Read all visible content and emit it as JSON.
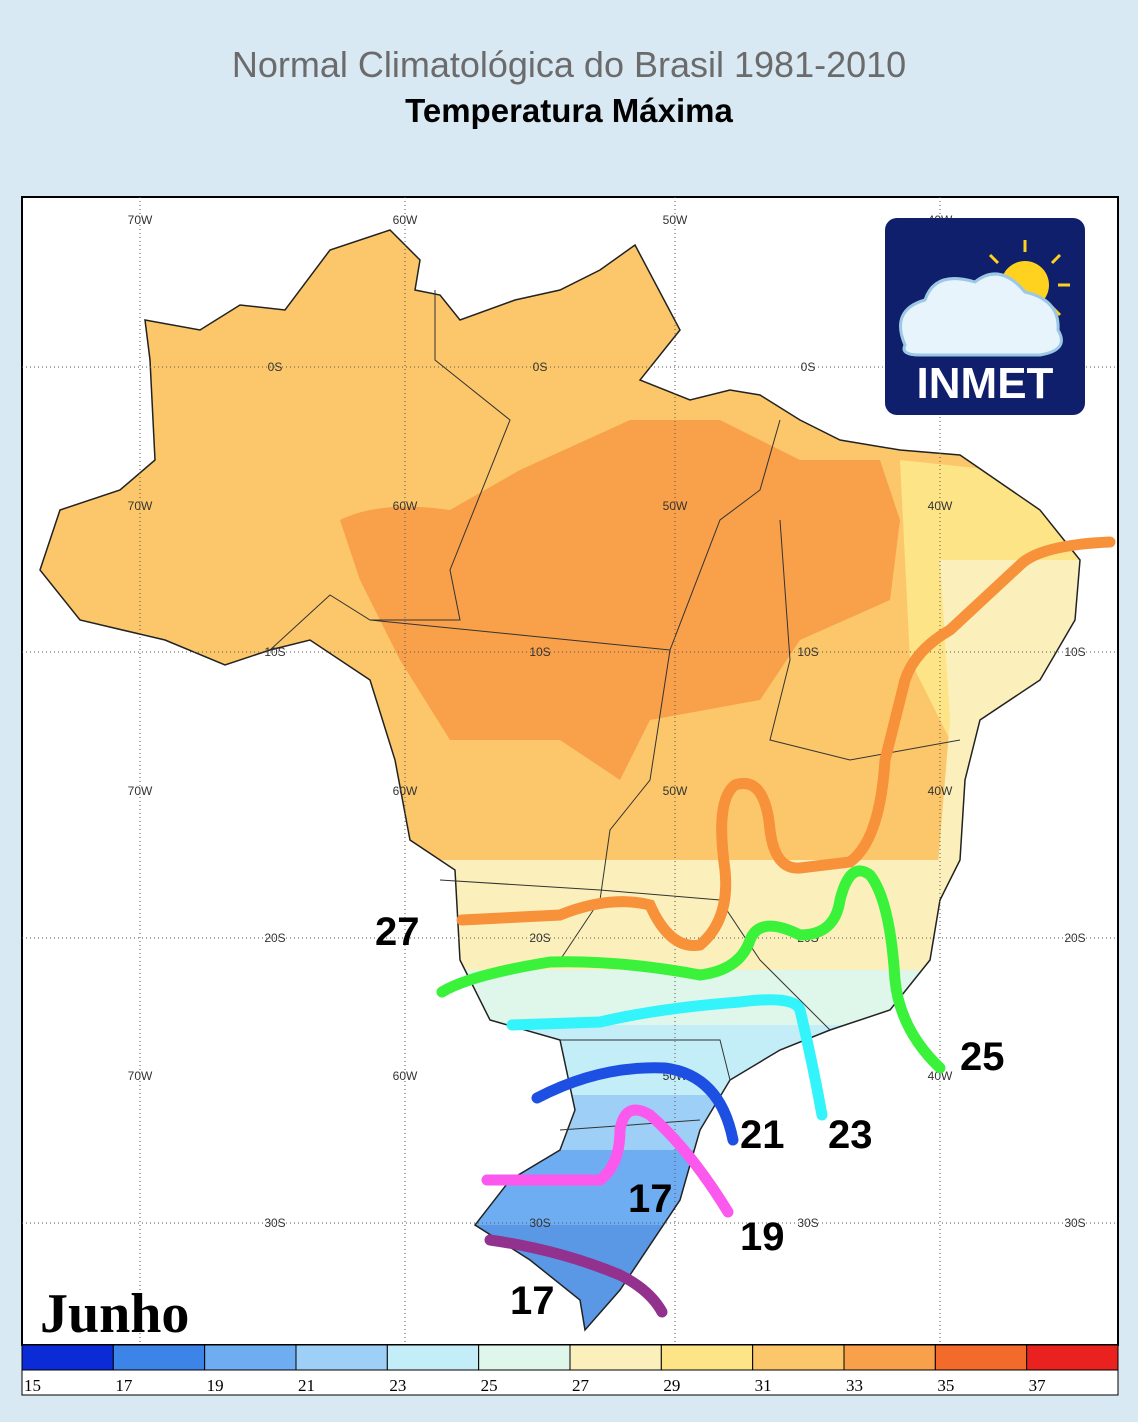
{
  "header": {
    "title": "Normal Climatológica do Brasil 1981-2010",
    "subtitle": "Temperatura Máxima"
  },
  "map": {
    "month": "Junho",
    "logo": "INMET",
    "lon_labels": [
      "70W",
      "60W",
      "50W",
      "40W"
    ],
    "lat_labels": [
      "0S",
      "10S",
      "20S",
      "30S"
    ],
    "isolines": [
      {
        "label": "27",
        "color": "#f7913a"
      },
      {
        "label": "25",
        "color": "#3af23a"
      },
      {
        "label": "23",
        "color": "#33f3fb"
      },
      {
        "label": "21",
        "color": "#1c4fe2"
      },
      {
        "label": "19",
        "color": "#fb58ee"
      },
      {
        "label": "17",
        "color": "#93318f"
      }
    ],
    "annotation": "17"
  },
  "colorbar": {
    "colors": [
      "#0a2bd6",
      "#3d84e8",
      "#6fadf2",
      "#9ecff6",
      "#c3eef8",
      "#dff6ea",
      "#fbf0bb",
      "#fde487",
      "#fcc76a",
      "#f9a04a",
      "#f26b2b",
      "#e9221f"
    ],
    "ticks": [
      "15",
      "17",
      "19",
      "21",
      "23",
      "25",
      "27",
      "29",
      "31",
      "33",
      "35",
      "37"
    ]
  }
}
